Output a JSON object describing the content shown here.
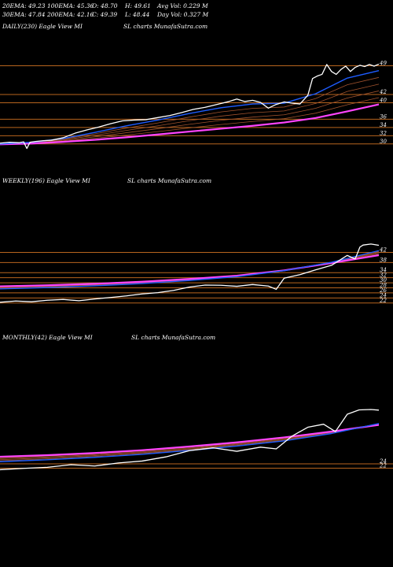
{
  "header": {
    "row1": [
      "20EMA: 49.23",
      "100EMA: 45.36",
      "O: 48.70",
      "H: 49.61",
      "Avg Vol: 0.229 M"
    ],
    "row2": [
      "30EMA: 47.84",
      "200EMA: 42.16",
      "C: 49.39",
      "L: 48.44",
      "Day Vol: 0.327 M"
    ]
  },
  "colors": {
    "background": "#000000",
    "price": "#ffffff",
    "ema_fast": "#1e5cff",
    "ema_slow": "#ff44ff",
    "bands": "#a0522d",
    "hlines": "#b8651e"
  },
  "chart_data": [
    {
      "type": "line",
      "panel": "daily",
      "title_left": "DAILY(230) Eagle  View  MI",
      "title_right": "SL  charts MunafaSutra.com",
      "price_levels": [
        49,
        42,
        40,
        36,
        34,
        32,
        30
      ],
      "ylim": [
        29,
        51
      ],
      "series": [
        {
          "role": "price",
          "x": [
            0,
            12,
            24,
            30,
            34,
            38,
            45,
            55,
            65,
            80,
            95,
            110,
            125,
            140,
            155,
            170,
            185,
            200,
            215,
            230,
            245,
            260,
            275,
            290,
            300,
            310,
            320,
            330,
            340,
            350,
            360,
            370,
            380,
            390,
            396,
            402,
            408,
            414,
            420,
            426,
            432,
            438,
            444,
            450,
            456,
            462,
            468,
            474,
            480
          ],
          "values": [
            30.2,
            30.4,
            30.3,
            30.5,
            28.9,
            30.4,
            30.6,
            30.8,
            30.9,
            31.5,
            32.6,
            33.4,
            34.1,
            34.9,
            35.6,
            35.8,
            35.9,
            36.4,
            36.9,
            37.6,
            38.4,
            38.9,
            39.6,
            40.3,
            40.9,
            40.3,
            40.6,
            40.1,
            38.7,
            39.6,
            40.2,
            39.9,
            39.7,
            41.8,
            45.9,
            46.5,
            46.9,
            49.3,
            47.6,
            46.9,
            48.1,
            48.9,
            47.6,
            48.6,
            49.1,
            48.8,
            49.3,
            48.9,
            49.39
          ]
        },
        {
          "role": "ema_fast",
          "x": [
            0,
            40,
            80,
            120,
            160,
            200,
            240,
            280,
            320,
            360,
            400,
            440,
            480
          ],
          "values": [
            30.0,
            30.4,
            31.3,
            32.8,
            34.4,
            35.8,
            37.4,
            38.8,
            39.7,
            39.9,
            42.2,
            46.0,
            47.8
          ]
        },
        {
          "role": "ema_slow",
          "x": [
            0,
            40,
            80,
            120,
            160,
            200,
            240,
            280,
            320,
            360,
            400,
            440,
            480
          ],
          "values": [
            29.9,
            30.1,
            30.5,
            31.0,
            31.6,
            32.3,
            33.0,
            33.7,
            34.4,
            35.2,
            36.3,
            37.9,
            39.6
          ]
        }
      ]
    },
    {
      "type": "line",
      "panel": "weekly",
      "title_left": "WEEKLY(196) Eagle  View  MI",
      "title_right": "SL  charts MunafaSutra.com",
      "price_levels": [
        42,
        38,
        34,
        32,
        30,
        28,
        26,
        24,
        22
      ],
      "ylim": [
        21,
        49
      ],
      "series": [
        {
          "role": "price",
          "x": [
            0,
            20,
            40,
            60,
            80,
            100,
            120,
            140,
            160,
            180,
            200,
            220,
            240,
            260,
            280,
            300,
            320,
            340,
            350,
            360,
            380,
            400,
            420,
            440,
            450,
            456,
            460,
            470,
            480
          ],
          "values": [
            22.3,
            22.8,
            22.5,
            23.1,
            23.4,
            22.9,
            23.6,
            24.2,
            24.8,
            25.6,
            26.1,
            27.0,
            28.3,
            29.1,
            29.0,
            28.6,
            29.3,
            28.7,
            27.4,
            31.8,
            33.2,
            35.1,
            36.9,
            40.8,
            39.4,
            44.1,
            44.9,
            45.3,
            44.8
          ]
        },
        {
          "role": "ema_fast",
          "x": [
            0,
            60,
            120,
            180,
            240,
            300,
            360,
            420,
            480
          ],
          "values": [
            27.6,
            28.1,
            28.8,
            29.7,
            30.9,
            32.4,
            34.8,
            38.1,
            42.7
          ]
        },
        {
          "role": "ema_slow",
          "x": [
            0,
            60,
            120,
            180,
            240,
            300,
            360,
            420,
            480
          ],
          "values": [
            28.6,
            29.0,
            29.6,
            30.4,
            31.5,
            32.8,
            34.9,
            37.8,
            40.9
          ]
        }
      ]
    },
    {
      "type": "line",
      "panel": "monthly",
      "title_left": "MONTHLY(42) Eagle  View  MI",
      "title_right": "SL  charts MunafaSutra.com",
      "price_levels": [
        24,
        22
      ],
      "ylim": [
        20,
        60
      ],
      "series": [
        {
          "role": "price",
          "x": [
            0,
            30,
            60,
            90,
            120,
            150,
            180,
            210,
            240,
            270,
            300,
            330,
            350,
            370,
            390,
            410,
            425,
            440,
            455,
            470,
            480
          ],
          "values": [
            21.3,
            21.9,
            22.4,
            23.6,
            23.0,
            24.4,
            25.3,
            27.2,
            30.1,
            31.4,
            29.8,
            31.7,
            30.9,
            36.8,
            40.9,
            42.3,
            38.9,
            46.9,
            48.9,
            49.1,
            48.8
          ]
        },
        {
          "role": "ema_fast",
          "x": [
            0,
            60,
            120,
            180,
            240,
            300,
            360,
            420,
            480
          ],
          "values": [
            25.0,
            25.9,
            27.0,
            28.4,
            30.2,
            32.2,
            34.6,
            38.0,
            42.6
          ]
        },
        {
          "role": "ema_slow",
          "x": [
            0,
            60,
            120,
            180,
            240,
            300,
            360,
            420,
            480
          ],
          "values": [
            27.3,
            28.0,
            29.0,
            30.3,
            32.0,
            33.9,
            36.2,
            38.9,
            42.0
          ]
        }
      ]
    }
  ]
}
